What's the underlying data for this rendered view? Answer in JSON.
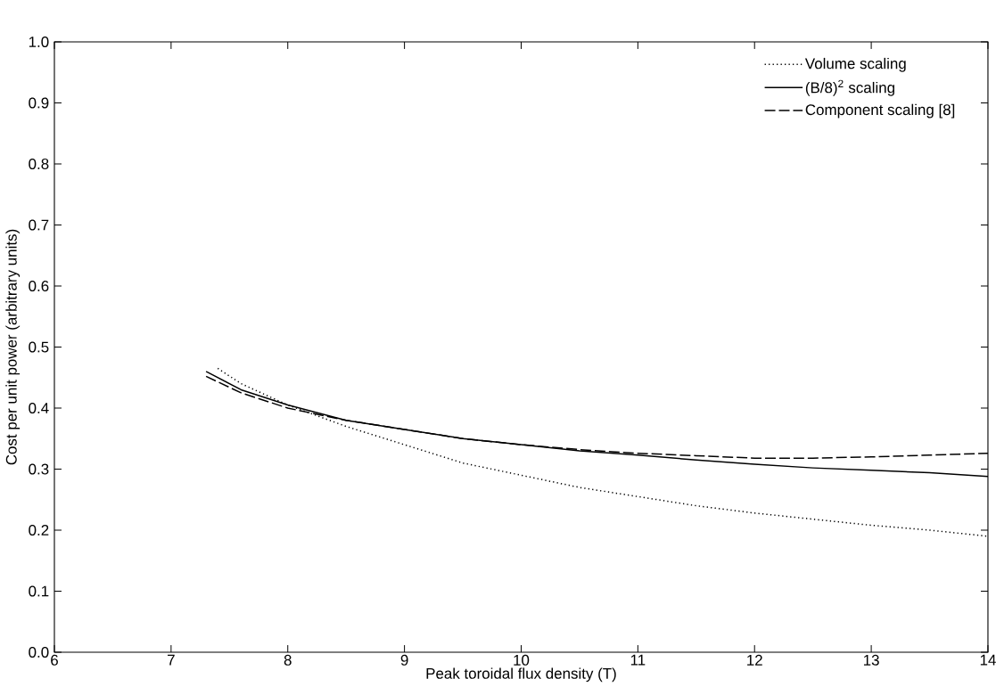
{
  "chart_data": {
    "type": "line",
    "xlabel": "Peak toroidal flux density (T)",
    "ylabel": "Cost per unit power (arbitrary units)",
    "xlim": [
      6,
      14
    ],
    "ylim": [
      0,
      1
    ],
    "xticks": [
      6,
      7,
      8,
      9,
      10,
      11,
      12,
      13,
      14
    ],
    "yticks": [
      {
        "value": 0,
        "label": "0.0"
      },
      {
        "value": 0.1,
        "label": "0.1"
      },
      {
        "value": 0.2,
        "label": "0.2"
      },
      {
        "value": 0.3,
        "label": "0.3"
      },
      {
        "value": 0.4,
        "label": "0.4"
      },
      {
        "value": 0.5,
        "label": "0.5"
      },
      {
        "value": 0.6,
        "label": "0.6"
      },
      {
        "value": 0.7,
        "label": "0.7"
      },
      {
        "value": 0.8,
        "label": "0.8"
      },
      {
        "value": 0.9,
        "label": "0.9"
      },
      {
        "value": 1,
        "label": "1.0"
      }
    ],
    "grid": false,
    "legend": "top right",
    "marker": "none",
    "series": [
      {
        "name": "Volume scaling",
        "color": "#000000",
        "line_style": "dotted",
        "x": [
          7.4,
          7.6,
          8.0,
          8.5,
          9,
          9.5,
          10,
          10.5,
          11,
          11.5,
          12,
          12.5,
          13,
          13.5,
          14
        ],
        "values": [
          0.465,
          0.44,
          0.405,
          0.37,
          0.34,
          0.31,
          0.29,
          0.27,
          0.255,
          0.24,
          0.228,
          0.218,
          0.208,
          0.2,
          0.19
        ]
      },
      {
        "name": "(B/8)$^{2}$ scaling",
        "color": "#000000",
        "line_style": "solid",
        "x": [
          7.3,
          7.6,
          8.0,
          8.5,
          9,
          9.5,
          10,
          10.5,
          11,
          11.5,
          12,
          12.5,
          13,
          13.5,
          14
        ],
        "values": [
          0.46,
          0.43,
          0.405,
          0.38,
          0.365,
          0.35,
          0.34,
          0.33,
          0.323,
          0.315,
          0.308,
          0.302,
          0.298,
          0.294,
          0.288
        ]
      },
      {
        "name": "Component scaling [8]",
        "color": "#000000",
        "line_style": "dashed",
        "x": [
          7.3,
          7.6,
          8.0,
          8.5,
          9,
          9.5,
          10,
          10.5,
          11,
          11.5,
          12,
          12.5,
          13,
          13.5,
          14
        ],
        "values": [
          0.452,
          0.425,
          0.4,
          0.38,
          0.365,
          0.35,
          0.34,
          0.332,
          0.326,
          0.322,
          0.318,
          0.318,
          0.32,
          0.323,
          0.326
        ]
      }
    ]
  }
}
